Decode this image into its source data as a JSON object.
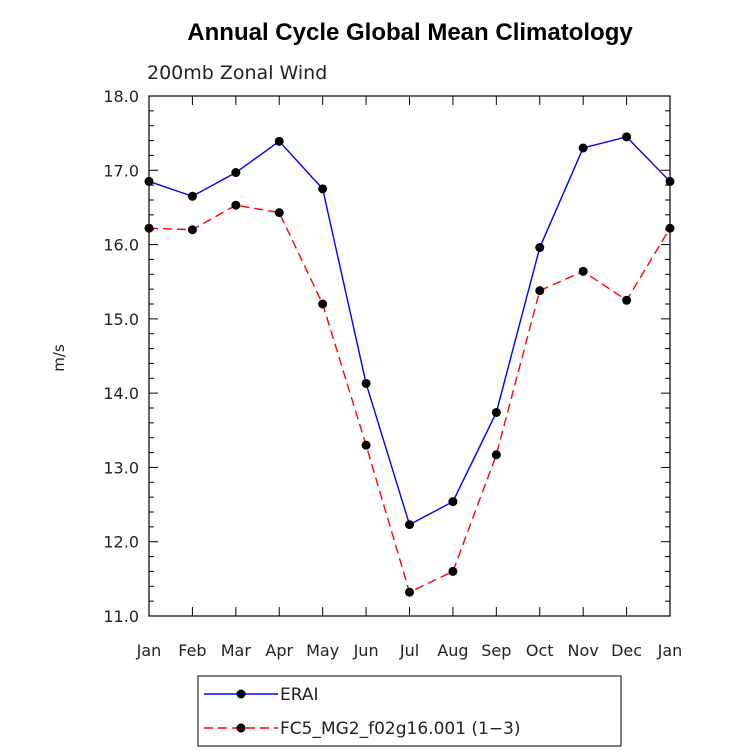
{
  "chart_data": {
    "type": "line",
    "title": "Annual Cycle Global Mean Climatology",
    "subtitle": "200mb Zonal Wind",
    "xlabel": "",
    "ylabel": "m/s",
    "categories": [
      "Jan",
      "Feb",
      "Mar",
      "Apr",
      "May",
      "Jun",
      "Jul",
      "Aug",
      "Sep",
      "Oct",
      "Nov",
      "Dec",
      "Jan"
    ],
    "ylim": [
      11.0,
      18.0
    ],
    "yticks": [
      "11.0",
      "12.0",
      "13.0",
      "14.0",
      "15.0",
      "16.0",
      "17.0",
      "18.0"
    ],
    "grid": false,
    "legend_position": "bottom",
    "series": [
      {
        "name": "ERAI",
        "color": "#0000ff",
        "dash": "solid",
        "values": [
          16.85,
          16.65,
          16.97,
          17.39,
          16.75,
          14.13,
          12.23,
          12.54,
          13.74,
          15.96,
          17.3,
          17.45,
          16.85
        ]
      },
      {
        "name": "FC5_MG2_f02g16.001 (1−3)",
        "color": "#ff0000",
        "dash": "dashed",
        "values": [
          16.22,
          16.2,
          16.53,
          16.43,
          15.2,
          13.3,
          11.32,
          11.6,
          13.17,
          15.38,
          15.64,
          15.25,
          16.22
        ]
      }
    ]
  }
}
